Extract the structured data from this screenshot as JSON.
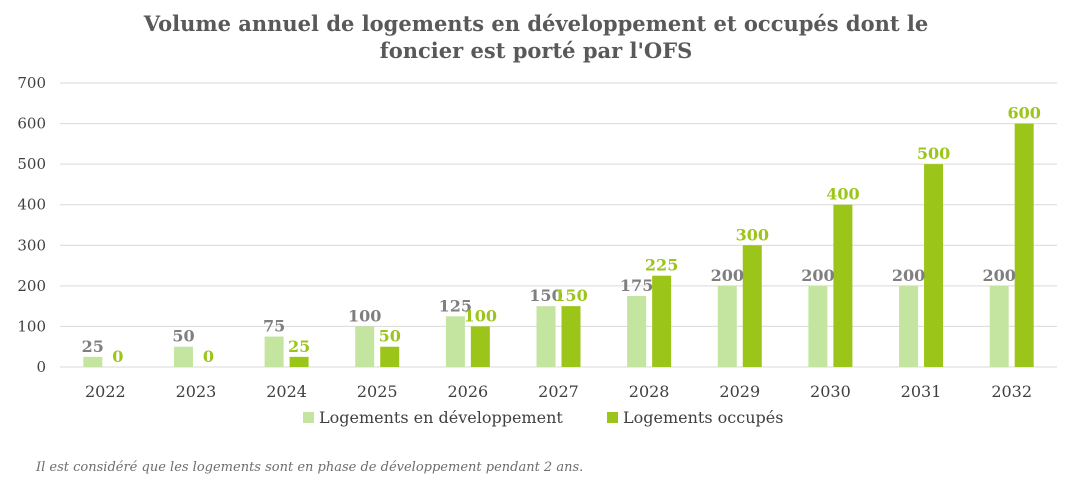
{
  "colors": {
    "dev": "#c3e5a0",
    "occ": "#9cc51a",
    "dev_label": "#7f7f7f",
    "occ_label": "#9cc51a",
    "grid": "#d9d9d9"
  },
  "chart_data": {
    "type": "bar",
    "title_lines": [
      "Volume annuel de logements en développement et occupés dont le",
      "foncier est porté par l'OFS"
    ],
    "categories": [
      "2022",
      "2023",
      "2024",
      "2025",
      "2026",
      "2027",
      "2028",
      "2029",
      "2030",
      "2031",
      "2032"
    ],
    "series": [
      {
        "name": "Logements en développement",
        "values": [
          25,
          50,
          75,
          100,
          125,
          150,
          175,
          200,
          200,
          200,
          200
        ]
      },
      {
        "name": "Logements occupés",
        "values": [
          0,
          0,
          25,
          50,
          100,
          150,
          225,
          300,
          400,
          500,
          600
        ]
      }
    ],
    "ylim": [
      0,
      700
    ],
    "yticks": [
      0,
      100,
      200,
      300,
      400,
      500,
      600,
      700
    ],
    "grid": true,
    "legend_position": "bottom"
  },
  "footnote": "Il est considéré que les logements sont en phase de développement pendant 2 ans."
}
